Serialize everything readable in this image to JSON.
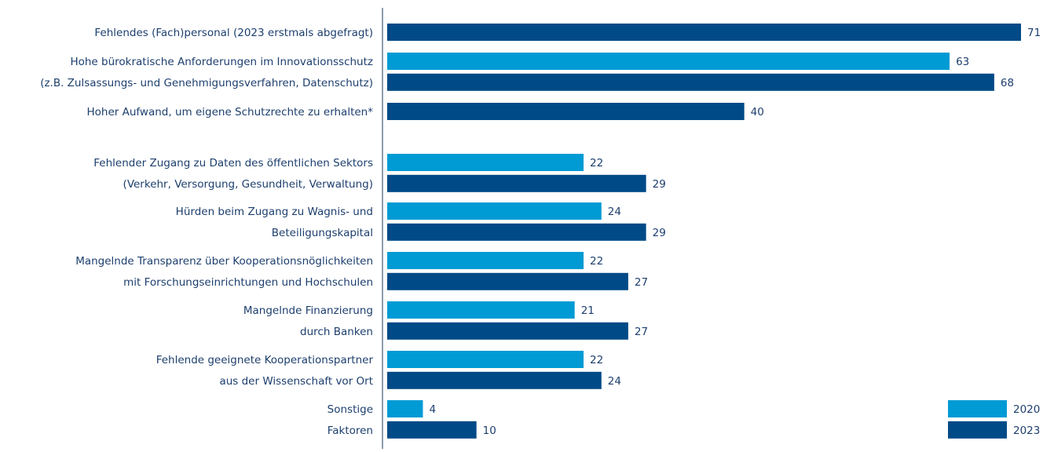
{
  "chart_data": {
    "type": "hbar",
    "categories": [
      [
        "Fehlendes (Fach)personal (2023 erstmals abgefragt)"
      ],
      [
        "Hohe bürokratische Anforderungen im Innovationsschutz",
        "(z.B. Zulsassungs- und Genehmigungsverfahren, Datenschutz)"
      ],
      [
        "Hoher Aufwand, um eigene Schutzrechte zu erhalten*"
      ],
      [
        "Fehlender Zugang zu Daten des öffentlichen Sektors",
        "(Verkehr, Versorgung, Gesundheit, Verwaltung)"
      ],
      [
        "Hürden beim Zugang zu Wagnis- und",
        "Beteiligungskapital"
      ],
      [
        "Mangelnde Transparenz über Kooperationsnöglichkeiten",
        "mit Forschungseinrichtungen und Hochschulen"
      ],
      [
        "Mangelnde Finanzierung",
        "durch Banken"
      ],
      [
        "Fehlende geeignete Kooperationspartner",
        "aus der Wissenschaft vor Ort"
      ],
      [
        "Sonstige",
        "Faktoren"
      ]
    ],
    "series": [
      {
        "name": "2020",
        "color": "#009bd4",
        "values": [
          null,
          63,
          null,
          22,
          24,
          22,
          21,
          22,
          4
        ]
      },
      {
        "name": "2023",
        "color": "#004a87",
        "values": [
          71,
          68,
          40,
          29,
          29,
          27,
          27,
          24,
          10
        ]
      }
    ],
    "legend": "bottom-right"
  }
}
